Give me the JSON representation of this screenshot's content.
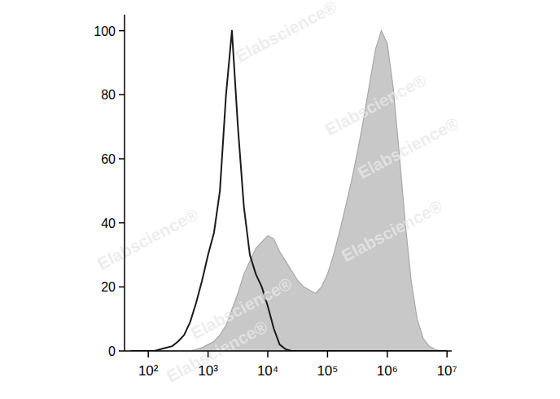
{
  "chart_data": {
    "type": "line",
    "log": "x",
    "x": [
      50.1,
      63.1,
      79.4,
      100,
      126,
      158,
      200,
      251,
      316,
      398,
      501,
      631,
      794,
      1000,
      1260,
      1580,
      2000,
      2510,
      3160,
      3980,
      5010,
      6310,
      7940,
      10000,
      12600,
      15800,
      20000,
      25100,
      31600,
      39800,
      50100,
      63100,
      79400,
      100000,
      126000,
      158000,
      200000,
      251000,
      316000,
      398000,
      501000,
      631000,
      794000,
      1000000,
      1260000,
      1580000,
      2000000,
      2510000,
      3160000,
      3980000,
      5010000,
      6310000,
      7940000,
      10000000
    ],
    "series": [
      {
        "type": "area",
        "color": "#c8c8c8",
        "values": [
          0,
          0,
          0,
          0,
          0,
          0,
          0,
          0,
          0,
          0,
          0,
          0.5,
          1,
          2,
          3,
          5,
          8,
          13,
          18,
          24,
          28,
          32,
          34,
          36,
          35,
          31,
          28,
          25,
          22,
          20,
          19,
          18,
          20,
          24,
          30,
          37,
          45,
          53,
          62,
          72,
          83,
          94,
          100,
          96,
          82,
          62,
          40,
          22,
          10,
          4,
          1.5,
          0.5,
          0,
          0
        ]
      },
      {
        "type": "line",
        "color": "#1a1a1a",
        "values": [
          0,
          0,
          0,
          0,
          0,
          0.5,
          1,
          1.5,
          3,
          5,
          9,
          15,
          22,
          30,
          37,
          50,
          80,
          100,
          70,
          45,
          30,
          24,
          20,
          14,
          7,
          2,
          0.5,
          0,
          0,
          0,
          0,
          0,
          0,
          0,
          0,
          0,
          0,
          0,
          0,
          0,
          0,
          0,
          0,
          0,
          0,
          0,
          0,
          0,
          0,
          0,
          0,
          0,
          0,
          0
        ]
      }
    ],
    "xlim": [
      40,
      12000000
    ],
    "ylim": [
      0,
      105
    ],
    "xticks": [
      {
        "value": 100,
        "label": "10²"
      },
      {
        "value": 1000,
        "label": "10³"
      },
      {
        "value": 10000,
        "label": "10⁴"
      },
      {
        "value": 100000,
        "label": "10⁵"
      },
      {
        "value": 1000000,
        "label": "10⁶"
      },
      {
        "value": 10000000,
        "label": "10⁷"
      }
    ],
    "yticks": [
      0,
      20,
      40,
      60,
      80,
      100
    ],
    "grid": false,
    "annotations": [
      "Elabscience®"
    ]
  }
}
